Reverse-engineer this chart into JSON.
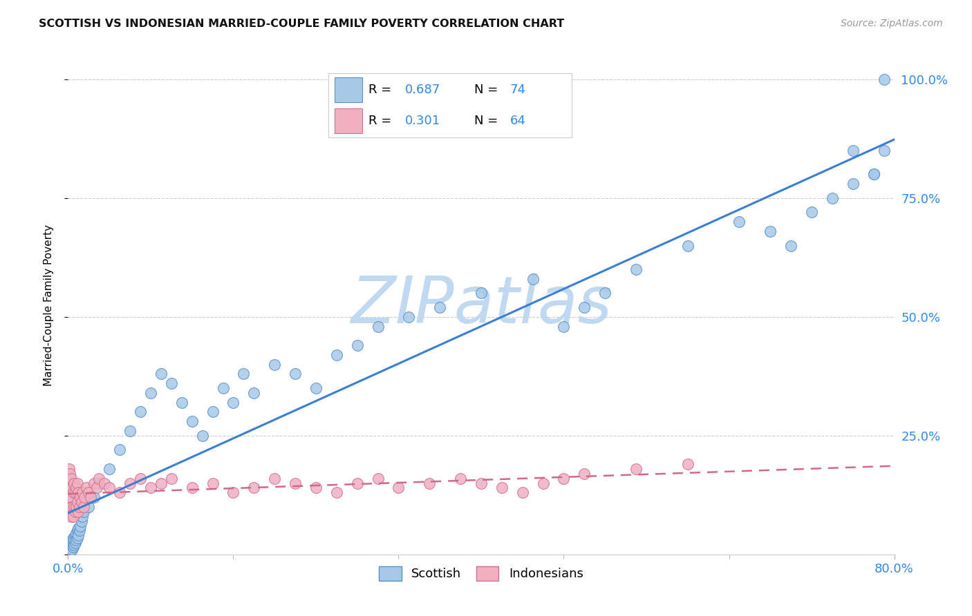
{
  "title": "SCOTTISH VS INDONESIAN MARRIED-COUPLE FAMILY POVERTY CORRELATION CHART",
  "source": "Source: ZipAtlas.com",
  "ylabel": "Married-Couple Family Poverty",
  "scottish_R": 0.687,
  "scottish_N": 74,
  "indonesian_R": 0.301,
  "indonesian_N": 64,
  "scottish_color": "#a8c8e8",
  "scottish_edge_color": "#5590cc",
  "scottish_line_color": "#3a7fd5",
  "indonesian_color": "#f0b0c0",
  "indonesian_edge_color": "#d07090",
  "indonesian_line_color": "#d06888",
  "label_color": "#3388ee",
  "background_color": "#ffffff",
  "grid_color": "#cccccc",
  "title_color": "#111111",
  "watermark_text": "ZIPatlas",
  "watermark_color": "#c0d8f0",
  "source_color": "#999999",
  "ytick_labels": [
    "",
    "25.0%",
    "50.0%",
    "75.0%",
    "100.0%"
  ],
  "ytick_values": [
    0.0,
    0.25,
    0.5,
    0.75,
    1.0
  ],
  "xtick_labels": [
    "0.0%",
    "80.0%"
  ],
  "xtick_values": [
    0.0,
    0.8
  ],
  "xlim": [
    0.0,
    0.8
  ],
  "ylim": [
    0.0,
    1.05
  ],
  "scottish_x": [
    0.001,
    0.001,
    0.001,
    0.002,
    0.002,
    0.002,
    0.003,
    0.003,
    0.003,
    0.004,
    0.004,
    0.004,
    0.005,
    0.005,
    0.005,
    0.006,
    0.006,
    0.007,
    0.007,
    0.008,
    0.008,
    0.009,
    0.009,
    0.01,
    0.01,
    0.011,
    0.012,
    0.013,
    0.014,
    0.015,
    0.02,
    0.025,
    0.03,
    0.04,
    0.05,
    0.06,
    0.07,
    0.08,
    0.09,
    0.1,
    0.11,
    0.12,
    0.13,
    0.14,
    0.15,
    0.16,
    0.17,
    0.18,
    0.2,
    0.22,
    0.24,
    0.26,
    0.28,
    0.3,
    0.33,
    0.36,
    0.4,
    0.45,
    0.48,
    0.5,
    0.52,
    0.55,
    0.6,
    0.65,
    0.68,
    0.7,
    0.72,
    0.74,
    0.76,
    0.78,
    0.79,
    0.79,
    0.78,
    0.76
  ],
  "scottish_y": [
    0.005,
    0.01,
    0.015,
    0.005,
    0.01,
    0.02,
    0.008,
    0.015,
    0.025,
    0.01,
    0.02,
    0.03,
    0.015,
    0.025,
    0.035,
    0.02,
    0.03,
    0.025,
    0.04,
    0.03,
    0.045,
    0.035,
    0.05,
    0.04,
    0.055,
    0.05,
    0.06,
    0.07,
    0.08,
    0.09,
    0.1,
    0.12,
    0.15,
    0.18,
    0.22,
    0.26,
    0.3,
    0.34,
    0.38,
    0.36,
    0.32,
    0.28,
    0.25,
    0.3,
    0.35,
    0.32,
    0.38,
    0.34,
    0.4,
    0.38,
    0.35,
    0.42,
    0.44,
    0.48,
    0.5,
    0.52,
    0.55,
    0.58,
    0.48,
    0.52,
    0.55,
    0.6,
    0.65,
    0.7,
    0.68,
    0.65,
    0.72,
    0.75,
    0.78,
    0.8,
    0.85,
    1.0,
    0.8,
    0.85
  ],
  "indonesian_x": [
    0.001,
    0.001,
    0.001,
    0.002,
    0.002,
    0.002,
    0.003,
    0.003,
    0.003,
    0.004,
    0.004,
    0.005,
    0.005,
    0.006,
    0.006,
    0.007,
    0.007,
    0.008,
    0.008,
    0.009,
    0.009,
    0.01,
    0.01,
    0.011,
    0.012,
    0.013,
    0.014,
    0.015,
    0.016,
    0.018,
    0.02,
    0.022,
    0.025,
    0.028,
    0.03,
    0.035,
    0.04,
    0.05,
    0.06,
    0.07,
    0.08,
    0.09,
    0.1,
    0.12,
    0.14,
    0.16,
    0.18,
    0.2,
    0.22,
    0.24,
    0.26,
    0.28,
    0.3,
    0.32,
    0.35,
    0.38,
    0.4,
    0.42,
    0.44,
    0.46,
    0.48,
    0.5,
    0.55,
    0.6
  ],
  "indonesian_y": [
    0.12,
    0.15,
    0.18,
    0.1,
    0.14,
    0.17,
    0.08,
    0.12,
    0.16,
    0.1,
    0.14,
    0.08,
    0.13,
    0.1,
    0.15,
    0.09,
    0.13,
    0.1,
    0.14,
    0.11,
    0.15,
    0.09,
    0.13,
    0.1,
    0.12,
    0.11,
    0.13,
    0.1,
    0.12,
    0.14,
    0.13,
    0.12,
    0.15,
    0.14,
    0.16,
    0.15,
    0.14,
    0.13,
    0.15,
    0.16,
    0.14,
    0.15,
    0.16,
    0.14,
    0.15,
    0.13,
    0.14,
    0.16,
    0.15,
    0.14,
    0.13,
    0.15,
    0.16,
    0.14,
    0.15,
    0.16,
    0.15,
    0.14,
    0.13,
    0.15,
    0.16,
    0.17,
    0.18,
    0.19
  ]
}
